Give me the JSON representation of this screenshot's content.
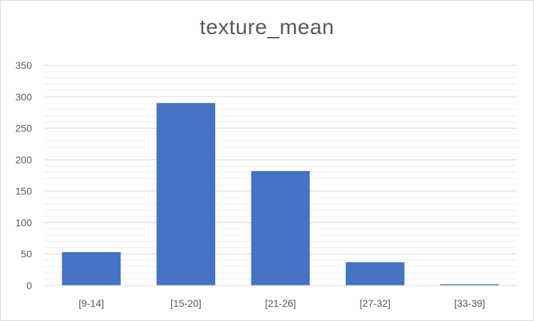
{
  "chart_data": {
    "type": "bar",
    "title": "texture_mean",
    "categories": [
      "[9-14]",
      "[15-20]",
      "[21-26]",
      "[27-32]",
      "[33-39]"
    ],
    "values": [
      53,
      290,
      182,
      37,
      2
    ],
    "yticks": [
      "0",
      "50",
      "100",
      "150",
      "200",
      "250",
      "300",
      "350"
    ],
    "ylim": [
      0,
      350
    ],
    "grid": true,
    "bar_color": "#4472c4",
    "grid_color": "#d9d9d9",
    "minor_grid_color": "#efefef"
  }
}
